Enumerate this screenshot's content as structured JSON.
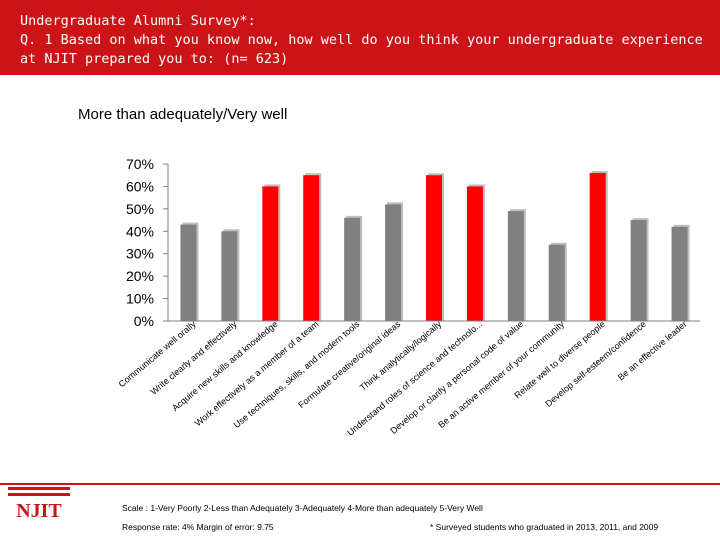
{
  "header": {
    "title": "Undergraduate Alumni Survey*:\nQ. 1 Based on what you know now, how well do you think your undergraduate experience at NJIT prepared you to: (n= 623)"
  },
  "colors": {
    "header_bg": "#cc1418",
    "bar_red": "#ff0000",
    "bar_gray": "#808080",
    "axis": "#7f7f7f"
  },
  "chart_data": {
    "type": "bar",
    "title": "More than adequately/Very well",
    "xlabel": "",
    "ylabel": "",
    "ylim": [
      0,
      0.7
    ],
    "yticks": [
      "70%",
      "60%",
      "50%",
      "40%",
      "30%",
      "20%",
      "10%",
      "0%"
    ],
    "grid": false,
    "categories": [
      "Communicate well orally",
      "Write clearly and effectively",
      "Acquire new skills and knowledge",
      "Work effectively as a member of a team",
      "Use techniques, skills, and modern tools",
      "Formulate creative/original ideas",
      "Think analytically/logically",
      "Understand roles of science and technolo...",
      "Develop or clarify a personal code of value",
      "Be an active member of your community",
      "Relate well to diverse people",
      "Develop self-esteem/confidence",
      "Be an effective leader"
    ],
    "values": [
      0.43,
      0.4,
      0.6,
      0.65,
      0.46,
      0.52,
      0.65,
      0.6,
      0.49,
      0.34,
      0.66,
      0.45,
      0.42
    ],
    "highlight": [
      false,
      false,
      true,
      true,
      false,
      false,
      true,
      true,
      false,
      false,
      true,
      false,
      false
    ]
  },
  "logo": {
    "text": "NJIT"
  },
  "footer": {
    "scale": "Scale : 1-Very Poorly 2-Less than Adequately 3-Adequately 4-More than adequately 5-Very Well",
    "response": "Response rate: 4%  Margin of error: 9.75",
    "surveyed": "* Surveyed students who graduated in 2013, 2011, and 2009"
  }
}
